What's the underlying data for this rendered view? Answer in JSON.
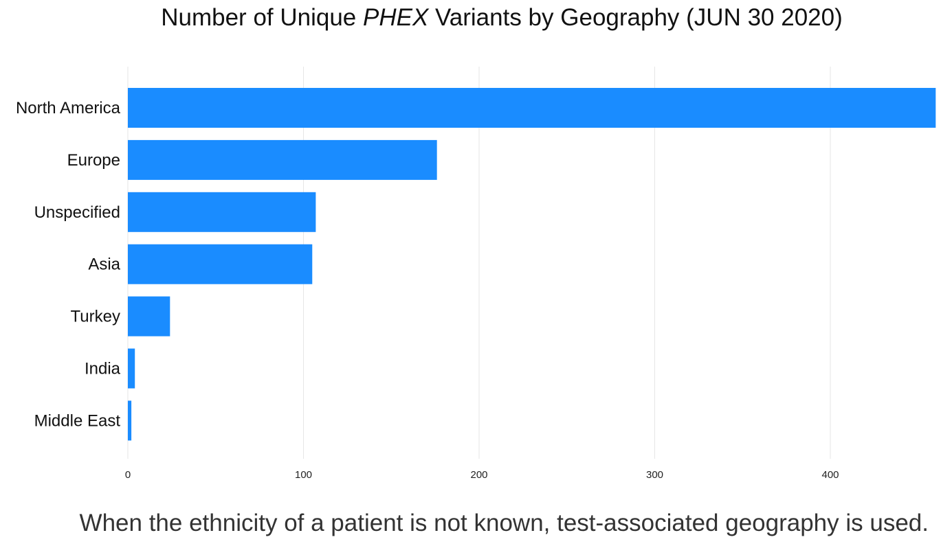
{
  "title_parts": [
    "Number of Unique ",
    "PHEX",
    " Variants by Geography (JUN 30 2020)"
  ],
  "footnote": "When the ethnicity of a patient is not known, test-associated geography is used.",
  "colors": {
    "bar": "#1a8cff",
    "grid": "#e6e6e6"
  },
  "chart_data": {
    "type": "bar",
    "orientation": "horizontal",
    "title": "Number of Unique PHEX Variants by Geography (JUN 30 2020)",
    "categories": [
      "North America",
      "Europe",
      "Unspecified",
      "Asia",
      "Turkey",
      "India",
      "Middle East"
    ],
    "values": [
      460,
      176,
      107,
      105,
      24,
      4,
      2
    ],
    "xlabel": "",
    "ylabel": "",
    "xlim": [
      0,
      460
    ],
    "xticks": [
      0,
      100,
      200,
      300,
      400
    ],
    "grid": true,
    "legend": "none"
  }
}
